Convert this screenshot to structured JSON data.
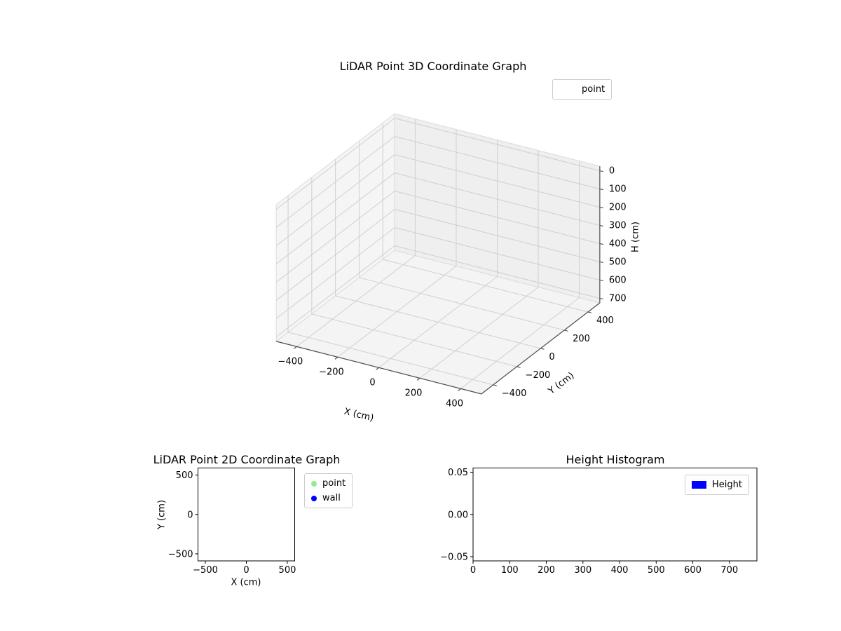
{
  "figure": {
    "background": "#ffffff"
  },
  "colors": {
    "point_green": "#90ee90",
    "wall_blue": "#0000ff",
    "height_blue": "#0000ff"
  },
  "chart_data": [
    {
      "type": "scatter",
      "is3d": true,
      "title": "LiDAR Point 3D Coordinate Graph",
      "xlabel": "X (cm)",
      "ylabel": "Y (cm)",
      "zlabel": "H (cm)",
      "xticks": [
        -400,
        -200,
        0,
        200,
        400
      ],
      "yticks": [
        -400,
        -200,
        0,
        200,
        400
      ],
      "zticks": [
        0,
        100,
        200,
        300,
        400,
        500,
        600,
        700
      ],
      "xlim": [
        -500,
        500
      ],
      "ylim": [
        -500,
        500
      ],
      "zlim": [
        -25,
        725
      ],
      "z_axis_inverted": true,
      "grid": true,
      "legend_position": "upper right",
      "series": [
        {
          "name": "point",
          "points": []
        }
      ]
    },
    {
      "type": "scatter",
      "is3d": false,
      "title": "LiDAR Point 2D Coordinate Graph",
      "xlabel": "X (cm)",
      "ylabel": "Y (cm)",
      "xticks": [
        -500,
        0,
        500
      ],
      "yticks": [
        -500,
        0,
        500
      ],
      "xlim": [
        -590,
        590
      ],
      "ylim": [
        -590,
        590
      ],
      "grid": false,
      "legend_position": "outside upper right",
      "series": [
        {
          "name": "point",
          "color": "#90ee90",
          "points": []
        },
        {
          "name": "wall",
          "color": "#0000ff",
          "points": []
        }
      ]
    },
    {
      "type": "bar",
      "title": "Height Histogram",
      "xlabel": "",
      "ylabel": "",
      "xticks": [
        0,
        100,
        200,
        300,
        400,
        500,
        600,
        700
      ],
      "yticks": [
        -0.05,
        0.0,
        0.05
      ],
      "ytick_labels": [
        "−0.05",
        "0.00",
        "0.05"
      ],
      "xlim": [
        0,
        775
      ],
      "ylim": [
        -0.055,
        0.055
      ],
      "grid": false,
      "legend_position": "upper right",
      "series": [
        {
          "name": "Height",
          "color": "#0000ff",
          "values": []
        }
      ]
    }
  ]
}
